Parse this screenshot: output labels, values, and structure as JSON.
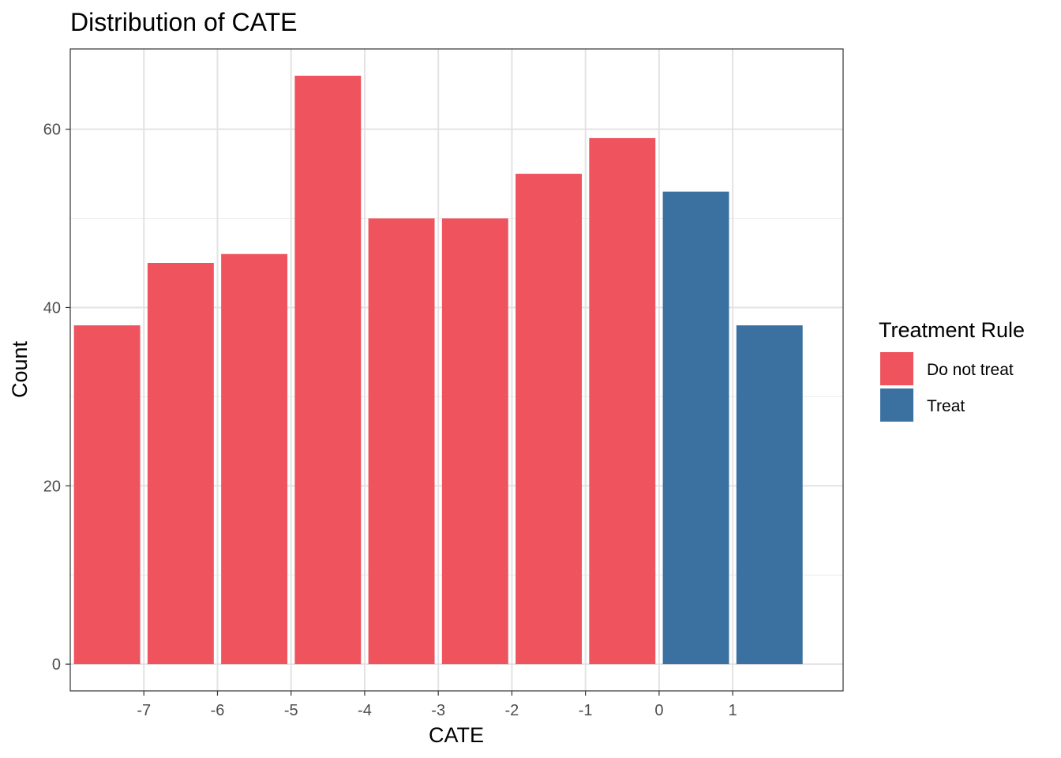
{
  "chart_data": {
    "type": "bar",
    "title": "Distribution of CATE",
    "xlabel": "CATE",
    "ylabel": "Count",
    "xlim": [
      -8.0,
      2.5
    ],
    "ylim": [
      -3.0,
      69.0
    ],
    "x_ticks": [
      -7,
      -6,
      -5,
      -4,
      -3,
      -2,
      -1,
      0,
      1
    ],
    "x_tick_labels": [
      "-7",
      "-6",
      "-5",
      "-4",
      "-3",
      "-2",
      "-1",
      "0",
      "1"
    ],
    "y_ticks": [
      0,
      20,
      40,
      60
    ],
    "y_tick_labels": [
      "0",
      "20",
      "40",
      "60"
    ],
    "y_minor_ticks": [
      10,
      30,
      50
    ],
    "grid": true,
    "bin_width": 1.0,
    "bar_width_fraction": 0.9,
    "legend": {
      "title": "Treatment Rule",
      "position": "right",
      "entries": [
        {
          "label": "Do not treat",
          "color": "#EE535E"
        },
        {
          "label": "Treat",
          "color": "#3B71A0"
        }
      ]
    },
    "series": [
      {
        "name": "Do not treat",
        "color": "#EE535E",
        "x": [
          -7.5,
          -6.5,
          -5.5,
          -4.5,
          -3.5,
          -2.5,
          -1.5,
          -0.5
        ],
        "values": [
          38,
          45,
          46,
          66,
          50,
          50,
          55,
          59
        ]
      },
      {
        "name": "Treat",
        "color": "#3B71A0",
        "x": [
          0.5,
          1.5
        ],
        "values": [
          53,
          38
        ]
      }
    ]
  }
}
